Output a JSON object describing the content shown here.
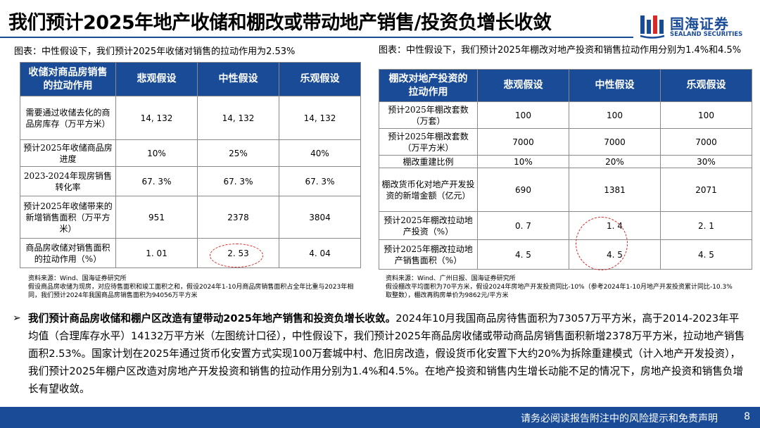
{
  "title": "我们预计2025年地产收储和棚改或带动地产销售/投资负增长收敛",
  "logo": {
    "cn": "国海证券",
    "en": "SEALAND SECURITIES",
    "icon": "sealand-logo-icon"
  },
  "left_chart": {
    "caption": "图表：中性假设下，我们预计2025年收储对销售的拉动作用为2.53%",
    "headers": [
      "收储对商品房销售的拉动作用",
      "悲观假设",
      "中性假设",
      "乐观假设"
    ],
    "rows": [
      {
        "label": "需要通过收储去化的商品房库存（万平方米）",
        "values": [
          "14, 132",
          "14, 132",
          "14, 132"
        ]
      },
      {
        "label": "预计2025年收储商品房进度",
        "values": [
          "10%",
          "25%",
          "40%"
        ]
      },
      {
        "label": "2023-2024年现房销售转化率",
        "values": [
          "67. 3%",
          "67. 3%",
          "67. 3%"
        ]
      },
      {
        "label": "预计2025年收储带来的新增销售面积（万平方米）",
        "values": [
          "951",
          "2378",
          "3804"
        ]
      },
      {
        "label": "商品房收储对销售面积的拉动作用（%）",
        "values": [
          "1. 01",
          "2. 53",
          "4. 04"
        ]
      }
    ],
    "note": "资料来源：Wind、国海证券研究所\n假设商品房收储为现房，对应待售面积和竣工面积之和，假设2024年1-10月商品房销售面积占全年比重与2023年相同，我们预计2024年我国商品房销售面积为94056万平方米"
  },
  "right_chart": {
    "caption": "图表：中性假设下，我们预计2025年棚改对地产投资和销售拉动作用分别为1.4%和4.5%",
    "headers": [
      "棚改对地产投资的拉动作用",
      "悲观假设",
      "中性假设",
      "乐观假设"
    ],
    "rows": [
      {
        "label": "预计2025年棚改套数（万套）",
        "values": [
          "100",
          "100",
          "100"
        ]
      },
      {
        "label": "预计2025年棚改套数（万平方米）",
        "values": [
          "7000",
          "7000",
          "7000"
        ]
      },
      {
        "label": "棚改重建比例",
        "values": [
          "10%",
          "20%",
          "30%"
        ]
      },
      {
        "label": "棚改货币化对地产开发投资的新增金额（亿元）",
        "values": [
          "690",
          "1381",
          "2071"
        ]
      },
      {
        "label": "预计2025年棚改拉动地产投资（%）",
        "values": [
          "0. 7",
          "1. 4",
          "2. 1"
        ]
      },
      {
        "label": "预计2025年棚改拉动地产销售面积（%）",
        "values": [
          "4. 5",
          "4. 5",
          "4. 5"
        ]
      }
    ],
    "note": "资料来源：Wind、广州日报、国海证券研究所\n假设棚改平均面积为70平方米，假设2024年房地产开发投资同比-10%（参考2024年1-10月地产开发投资累计同比-10.3%取整数），棚改再购房单价为9862元/平方米"
  },
  "summary": {
    "lead": "我们预计商品房收储和棚户区改造有望带动2025年地产销售和投资负增长收敛。",
    "body": "2024年10月我国商品房待售面积为73057万平方米，高于2014-2023年平均值（合理库存水平）14132万平方米（左图统计口径），中性假设下，我们预计2025年商品房收储或带动商品房销售面积新增2378万平方米，拉动地产销售面积2.53%。国家计划在2025年通过货币化安置方式实现100万套城中村、危旧房改造，假设货币化安置下大约20%为拆除重建模式（计入地产开发投资），我们预计2025年棚户区改造对房地产开发投资和销售的拉动作用分别为1.4%和4.5%。在地产投资和销售内生增长动能不足的情况下，房地产投资和销售负增长有望收敛。"
  },
  "footer": {
    "text": "请务必阅读报告附注中的风险提示和免责声明",
    "page": "8"
  },
  "colors": {
    "brand": "#1a4b97",
    "highlight": "#e02020"
  }
}
